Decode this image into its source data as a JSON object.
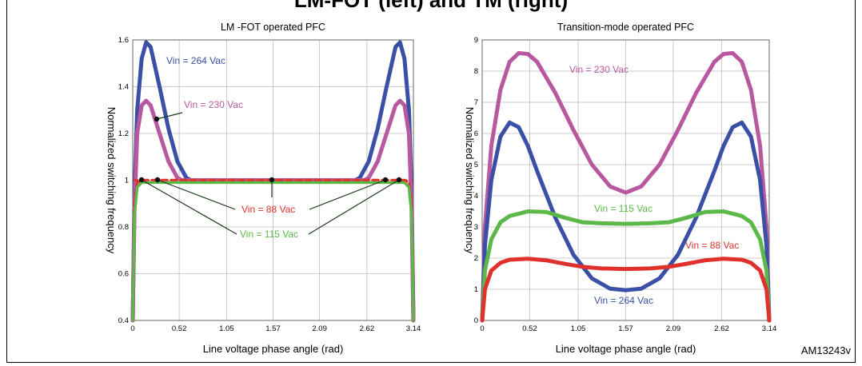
{
  "figure": {
    "title": "LM-FOT (left) and TM (right)",
    "code": "AM13243v"
  },
  "chart_data": [
    {
      "type": "line",
      "title": "LM -FOT operated PFC",
      "xlabel": "Line voltage phase angle (rad)",
      "ylabel": "Normalized switching frequency",
      "xlim": [
        0,
        3.14
      ],
      "ylim": [
        0.4,
        1.6
      ],
      "xticks": [
        "0",
        "0.52",
        "1.05",
        "1.57",
        "2.09",
        "2.62",
        "3.14"
      ],
      "yticks": [
        "0.4",
        "0.6",
        "0.8",
        "1",
        "1.2",
        "1.4",
        "1.6"
      ],
      "grid": true,
      "annotations": [
        "Vin = 264 Vac",
        "Vin = 230 Vac",
        "Vin = 88 Vac",
        "Vin = 115 Vac"
      ],
      "series": [
        {
          "name": "Vin = 264 Vac",
          "color": "#3a4fa6",
          "x": [
            0,
            0.02,
            0.05,
            0.1,
            0.15,
            0.2,
            0.3,
            0.4,
            0.5,
            0.6,
            0.65,
            0.7,
            1.0,
            1.57,
            2.1,
            2.44,
            2.49,
            2.54,
            2.64,
            2.74,
            2.84,
            2.94,
            2.99,
            3.04,
            3.09,
            3.12,
            3.14
          ],
          "y": [
            0.4,
            0.95,
            1.3,
            1.52,
            1.59,
            1.57,
            1.4,
            1.22,
            1.08,
            1.01,
            1.0,
            1.0,
            1.0,
            1.0,
            1.0,
            1.0,
            1.0,
            1.01,
            1.08,
            1.22,
            1.4,
            1.57,
            1.59,
            1.52,
            1.3,
            0.95,
            0.4
          ]
        },
        {
          "name": "Vin = 230 Vac",
          "color": "#b8589f",
          "x": [
            0,
            0.02,
            0.05,
            0.1,
            0.15,
            0.2,
            0.3,
            0.4,
            0.5,
            0.55,
            0.6,
            1.0,
            1.57,
            2.1,
            2.54,
            2.59,
            2.64,
            2.74,
            2.84,
            2.94,
            2.99,
            3.04,
            3.09,
            3.12,
            3.14
          ],
          "y": [
            0.4,
            0.88,
            1.2,
            1.32,
            1.34,
            1.32,
            1.2,
            1.08,
            1.01,
            1.0,
            1.0,
            1.0,
            1.0,
            1.0,
            1.0,
            1.0,
            1.01,
            1.08,
            1.2,
            1.32,
            1.34,
            1.32,
            1.2,
            0.88,
            0.4
          ]
        },
        {
          "name": "Vin = 88 Vac",
          "color": "#e0312d",
          "x": [
            0,
            0.02,
            0.05,
            0.1,
            0.2,
            1.57,
            2.94,
            3.04,
            3.09,
            3.12,
            3.14
          ],
          "y": [
            0.4,
            0.9,
            0.99,
            1.0,
            1.0,
            1.0,
            1.0,
            1.0,
            0.99,
            0.9,
            0.4
          ]
        },
        {
          "name": "Vin = 115 Vac",
          "color": "#5cb848",
          "x": [
            0,
            0.02,
            0.05,
            0.1,
            0.2,
            1.57,
            2.94,
            3.04,
            3.09,
            3.12,
            3.14
          ],
          "y": [
            0.4,
            0.85,
            0.97,
            0.99,
            0.99,
            0.99,
            0.99,
            0.99,
            0.97,
            0.85,
            0.4
          ]
        }
      ]
    },
    {
      "type": "line",
      "title": "Transition-mode operated PFC",
      "xlabel": "Line voltage phase angle (rad)",
      "ylabel": "Normalized switching frequency",
      "xlim": [
        0,
        3.14
      ],
      "ylim": [
        0,
        9
      ],
      "xticks": [
        "0",
        "0.52",
        "1.05",
        "1.57",
        "2.09",
        "2.62",
        "3.14"
      ],
      "yticks": [
        "0",
        "1",
        "2",
        "3",
        "4",
        "5",
        "6",
        "7",
        "8",
        "9"
      ],
      "grid": true,
      "annotations": [
        "Vin = 230 Vac",
        "Vin = 115 Vac",
        "Vin = 88 Vac",
        "Vin = 264 Vac"
      ],
      "series": [
        {
          "name": "Vin = 230 Vac",
          "color": "#b8589f",
          "x": [
            0,
            0.03,
            0.1,
            0.2,
            0.3,
            0.4,
            0.5,
            0.6,
            0.8,
            1.0,
            1.2,
            1.4,
            1.57,
            1.74,
            1.94,
            2.14,
            2.34,
            2.54,
            2.64,
            2.74,
            2.84,
            2.94,
            3.04,
            3.11,
            3.14
          ],
          "y": [
            0,
            3.0,
            5.6,
            7.4,
            8.3,
            8.58,
            8.55,
            8.3,
            7.3,
            6.1,
            5.0,
            4.3,
            4.1,
            4.3,
            5.0,
            6.1,
            7.3,
            8.3,
            8.55,
            8.58,
            8.3,
            7.4,
            5.6,
            3.0,
            0
          ]
        },
        {
          "name": "Vin = 264 Vac",
          "color": "#3a4fa6",
          "x": [
            0,
            0.03,
            0.1,
            0.2,
            0.3,
            0.4,
            0.5,
            0.6,
            0.8,
            1.0,
            1.2,
            1.4,
            1.57,
            1.74,
            1.94,
            2.14,
            2.34,
            2.54,
            2.64,
            2.74,
            2.84,
            2.94,
            3.04,
            3.11,
            3.14
          ],
          "y": [
            0,
            2.4,
            4.5,
            5.9,
            6.35,
            6.2,
            5.6,
            4.8,
            3.3,
            2.1,
            1.35,
            1.02,
            0.97,
            1.02,
            1.35,
            2.1,
            3.3,
            4.8,
            5.6,
            6.2,
            6.35,
            5.9,
            4.5,
            2.4,
            0
          ]
        },
        {
          "name": "Vin = 115 Vac",
          "color": "#5cb848",
          "x": [
            0,
            0.03,
            0.1,
            0.2,
            0.3,
            0.5,
            0.7,
            0.9,
            1.1,
            1.3,
            1.57,
            1.84,
            2.04,
            2.24,
            2.44,
            2.64,
            2.84,
            2.94,
            3.04,
            3.11,
            3.14
          ],
          "y": [
            0,
            1.6,
            2.6,
            3.15,
            3.35,
            3.5,
            3.48,
            3.3,
            3.15,
            3.12,
            3.1,
            3.12,
            3.15,
            3.3,
            3.48,
            3.5,
            3.35,
            3.15,
            2.6,
            1.6,
            0
          ]
        },
        {
          "name": "Vin = 88 Vac",
          "color": "#e0312d",
          "x": [
            0,
            0.03,
            0.1,
            0.2,
            0.3,
            0.5,
            0.7,
            0.9,
            1.1,
            1.3,
            1.57,
            1.84,
            2.04,
            2.24,
            2.44,
            2.64,
            2.84,
            2.94,
            3.04,
            3.11,
            3.14
          ],
          "y": [
            0,
            1.0,
            1.6,
            1.85,
            1.95,
            1.98,
            1.93,
            1.82,
            1.72,
            1.67,
            1.65,
            1.67,
            1.72,
            1.82,
            1.93,
            1.98,
            1.95,
            1.85,
            1.6,
            1.0,
            0
          ]
        }
      ]
    }
  ]
}
